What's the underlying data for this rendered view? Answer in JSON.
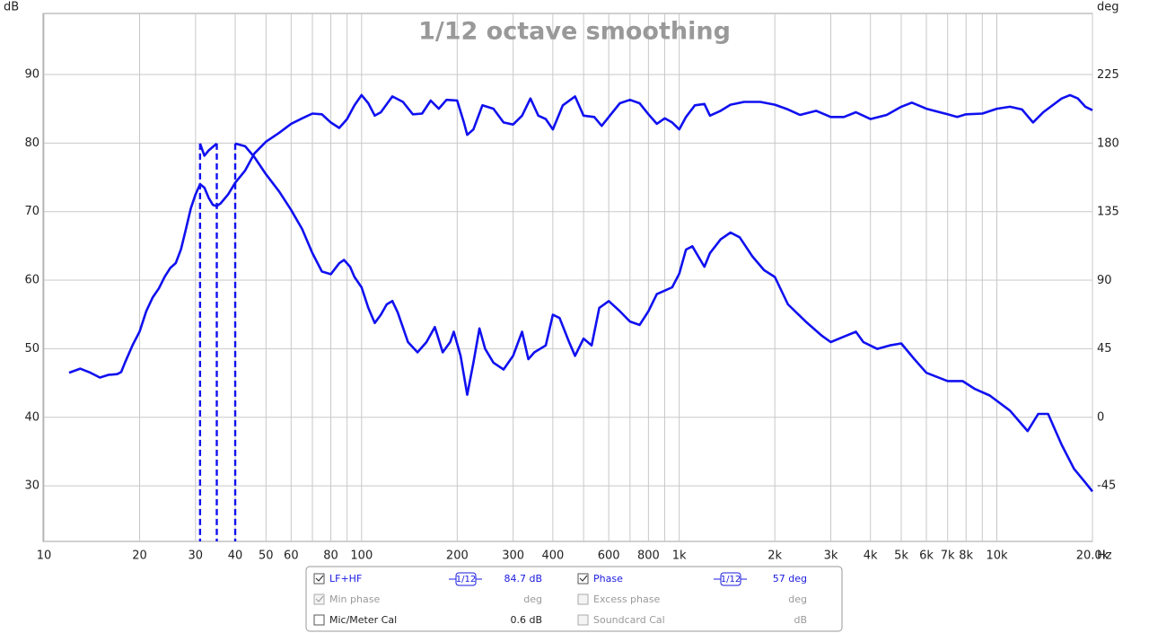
{
  "chart_data": {
    "type": "line",
    "title": "1/12 octave smoothing",
    "y_unit": "dB",
    "y2_unit": "deg",
    "x_unit": "Hz",
    "xscale": "log",
    "xlim": [
      10,
      20000
    ],
    "ylim": [
      21.9,
      98.9
    ],
    "y2lim": [
      -81.5,
      265.5
    ],
    "xticks": [
      10,
      20,
      30,
      40,
      50,
      60,
      80,
      100,
      200,
      300,
      400,
      600,
      800,
      {
        "value": 1000,
        "label": "1k"
      },
      {
        "value": 2000,
        "label": "2k"
      },
      {
        "value": 3000,
        "label": "3k"
      },
      {
        "value": 4000,
        "label": "4k"
      },
      {
        "value": 5000,
        "label": "5k"
      },
      {
        "value": 6000,
        "label": "6k"
      },
      {
        "value": 7000,
        "label": "7k"
      },
      {
        "value": 8000,
        "label": "8k"
      },
      {
        "value": 10000,
        "label": "10k"
      },
      {
        "value": 20000,
        "label": "20.0k"
      }
    ],
    "xgrid_minor": [
      70,
      90,
      500,
      700,
      900,
      9000
    ],
    "yticks": [
      30,
      40,
      50,
      60,
      70,
      80,
      90
    ],
    "y2ticks": [
      -45,
      0,
      45,
      90,
      135,
      180,
      225
    ],
    "grid": true,
    "series": [
      {
        "name": "LF+HF",
        "color": "#1010f0",
        "x": [
          12,
          13,
          14,
          15,
          16,
          17,
          17.5,
          18,
          19,
          20,
          21,
          22,
          23,
          24,
          25,
          26,
          27,
          28,
          29,
          30,
          31,
          32,
          33,
          34,
          35,
          36,
          38,
          40,
          43,
          46,
          50,
          55,
          60,
          65,
          70,
          75,
          80,
          85,
          90,
          95,
          100,
          105,
          110,
          115,
          125,
          135,
          145,
          155,
          165,
          175,
          185,
          200,
          210,
          215,
          225,
          240,
          260,
          280,
          300,
          320,
          340,
          360,
          380,
          400,
          430,
          470,
          500,
          540,
          570,
          600,
          650,
          700,
          750,
          800,
          850,
          900,
          950,
          1000,
          1050,
          1120,
          1200,
          1250,
          1350,
          1450,
          1600,
          1800,
          2000,
          2200,
          2400,
          2700,
          3000,
          3300,
          3600,
          4000,
          4500,
          5000,
          5400,
          6000,
          7000,
          7500,
          8000,
          9000,
          10000,
          11000,
          12000,
          13000,
          14000,
          16000,
          17000,
          18000,
          19000,
          20000
        ],
        "values": [
          46.5,
          47.1,
          46.5,
          45.8,
          46.2,
          46.3,
          46.6,
          48,
          50.5,
          52.5,
          55.5,
          57.5,
          58.8,
          60.5,
          61.8,
          62.5,
          64.5,
          67.5,
          70.5,
          72.5,
          74,
          73.5,
          72,
          71,
          70.8,
          71.2,
          72.5,
          74.2,
          76,
          78.5,
          80.2,
          81.5,
          82.8,
          83.6,
          84.3,
          84.2,
          83,
          82.2,
          83.5,
          85.5,
          87,
          85.8,
          84,
          84.5,
          86.8,
          86,
          84.2,
          84.3,
          86.2,
          85,
          86.3,
          86.2,
          83,
          81.2,
          82,
          85.5,
          85,
          83,
          82.7,
          84,
          86.5,
          84,
          83.5,
          82,
          85.5,
          86.8,
          84,
          83.8,
          82.5,
          83.8,
          85.8,
          86.3,
          85.8,
          84.2,
          82.8,
          83.6,
          83,
          82,
          83.8,
          85.5,
          85.7,
          84,
          84.7,
          85.6,
          86,
          86,
          85.6,
          84.9,
          84.1,
          84.7,
          83.8,
          83.8,
          84.5,
          83.5,
          84.1,
          85.3,
          85.9,
          85,
          84.2,
          83.8,
          84.2,
          84.3,
          85,
          85.3,
          84.9,
          83,
          84.5,
          86.5,
          87,
          86.5,
          85.3,
          84.8
        ]
      },
      {
        "name": "Phase",
        "color": "#1010f0",
        "axis": "y2",
        "x": [
          31,
          32,
          33,
          35,
          null,
          40,
          43,
          46,
          50,
          55,
          60,
          65,
          70,
          75,
          80,
          85,
          88,
          92,
          95,
          100,
          105,
          110,
          115,
          120,
          125,
          130,
          140,
          150,
          160,
          170,
          180,
          190,
          195,
          205,
          215,
          225,
          235,
          245,
          260,
          280,
          300,
          320,
          335,
          350,
          380,
          400,
          420,
          450,
          470,
          500,
          530,
          560,
          600,
          650,
          700,
          750,
          800,
          850,
          900,
          950,
          1000,
          1050,
          1100,
          1200,
          1250,
          1350,
          1450,
          1550,
          1700,
          1850,
          2000,
          2200,
          2500,
          2800,
          3000,
          3300,
          3600,
          3800,
          4200,
          4600,
          5000,
          5500,
          6000,
          7000,
          7800,
          8500,
          9500,
          11000,
          12500,
          13500,
          14500,
          16000,
          17500,
          19000,
          20000
        ],
        "values": [
          180,
          172,
          175.5,
          180,
          null,
          180,
          178.2,
          171,
          159.8,
          148.5,
          136.4,
          123.8,
          108,
          95.9,
          94.1,
          101.3,
          103.5,
          99,
          92.3,
          85.5,
          72,
          62.1,
          67.5,
          74.3,
          76.5,
          68.9,
          49.5,
          42.8,
          49.5,
          59.4,
          42.8,
          49.5,
          56.3,
          40.5,
          14.9,
          36,
          58.5,
          45,
          36,
          31.5,
          40.5,
          56.3,
          38.3,
          42.8,
          47.3,
          67.5,
          65.3,
          49.5,
          40.5,
          51.8,
          47.3,
          72,
          76.5,
          69.8,
          63,
          60.8,
          69.8,
          81,
          83.3,
          85.5,
          94.5,
          110.3,
          112.5,
          99,
          108,
          117,
          121.5,
          118.4,
          105.8,
          96.8,
          92.3,
          74.3,
          63,
          54,
          49.5,
          53.1,
          56.3,
          49.5,
          45,
          47.3,
          48.6,
          38.3,
          29.3,
          23.9,
          23.9,
          18.9,
          14.4,
          4.5,
          -9,
          2.3,
          2.3,
          -18,
          -33.8,
          -42.8,
          -48.6
        ]
      }
    ]
  },
  "panel": {
    "rows": [
      {
        "a_label": "LF+HF",
        "a_smoothing": "1/12",
        "a_value": "84.7 dB",
        "b_label": "Phase",
        "b_smoothing": "1/12",
        "b_value": "57 deg"
      },
      {
        "a_label": "Min phase",
        "a_value": "deg",
        "b_label": "Excess phase",
        "b_value": "deg"
      },
      {
        "a_label": "Mic/Meter Cal",
        "a_value": "0.6 dB",
        "b_label": "Soundcard Cal",
        "b_value": "dB"
      }
    ]
  }
}
